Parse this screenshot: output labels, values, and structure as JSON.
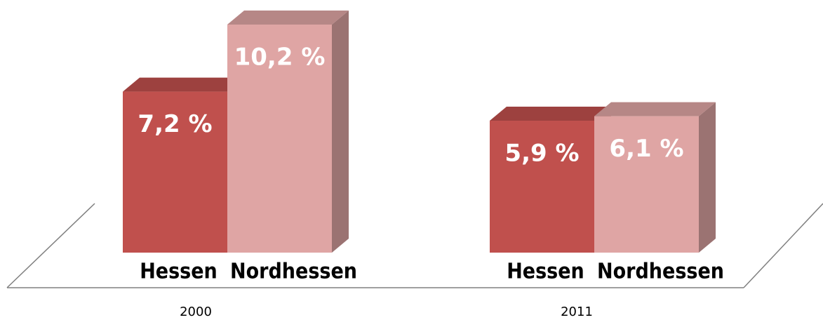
{
  "chart_data": {
    "type": "bar3d",
    "categories": [
      "2000",
      "2011"
    ],
    "series": [
      {
        "name": "Hessen",
        "color": "#c0504d",
        "values": [
          7.2,
          5.9
        ],
        "value_labels": [
          "7,2 %",
          "5,9 %"
        ]
      },
      {
        "name": "Nordhessen",
        "color": "#dfa5a4",
        "values": [
          10.2,
          6.1
        ],
        "value_labels": [
          "10,2 %",
          "6,1 %"
        ]
      }
    ]
  }
}
